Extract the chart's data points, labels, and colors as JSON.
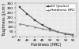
{
  "series": [
    {
      "label": "KV (Joules)",
      "x": [
        42,
        44,
        46,
        48,
        50,
        52,
        54,
        56
      ],
      "y": [
        310,
        240,
        175,
        120,
        80,
        50,
        28,
        15
      ],
      "color": "#444444",
      "marker": "s",
      "linestyle": "-"
    },
    {
      "label": "Hardness HRC",
      "x": [
        42,
        44,
        46,
        48,
        50,
        52,
        54,
        56
      ],
      "y": [
        135,
        118,
        100,
        82,
        65,
        50,
        36,
        22
      ],
      "color": "#888888",
      "marker": "*",
      "linestyle": "-"
    }
  ],
  "xlim": [
    41,
    57
  ],
  "ylim": [
    0,
    350
  ],
  "xticks": [
    42,
    44,
    46,
    48,
    50,
    52,
    54,
    56
  ],
  "yticks": [
    0,
    50,
    100,
    150,
    200,
    250,
    300,
    350
  ],
  "xtick_labels": [
    "42",
    "44",
    "46",
    "48",
    "50",
    "52",
    "54",
    "56"
  ],
  "xlabel": "Hardness (HRC)",
  "ylabel": "Toughness (J/cm²)",
  "grid": true,
  "legend_loc": "upper right",
  "background_color": "#e8e8e8",
  "plot_bg_color": "#e8e8e8",
  "axis_fontsize": 3.5,
  "tick_fontsize": 3.0,
  "legend_fontsize": 3.2,
  "linewidth": 0.7,
  "markersize": 2.0
}
